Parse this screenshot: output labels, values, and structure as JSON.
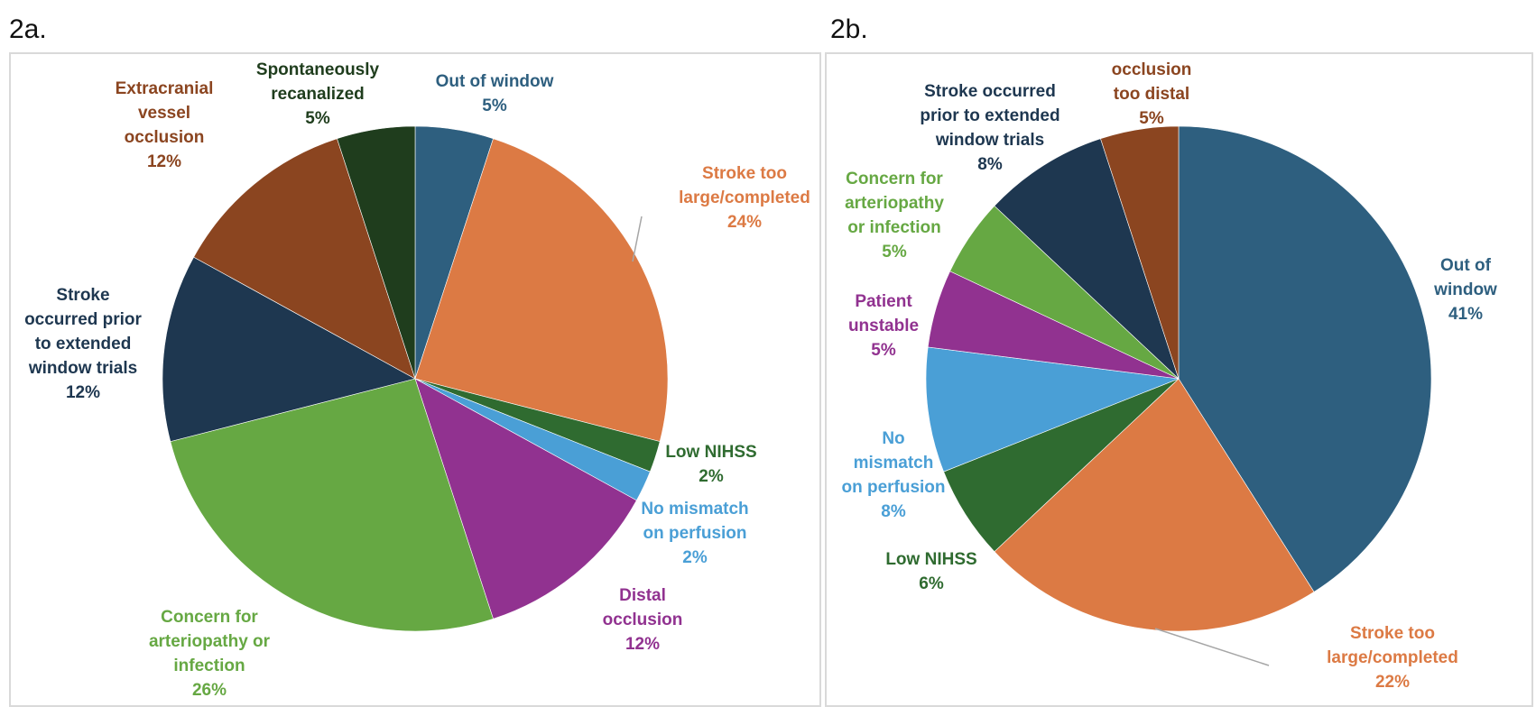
{
  "panels": {
    "a": "2a.",
    "b": "2b."
  },
  "chart_data": [
    {
      "id": "2a",
      "type": "pie",
      "title": "2a.",
      "slices": [
        {
          "name": [
            "Out of window"
          ],
          "value": 5,
          "label": "5%",
          "color": "#2e5f7f",
          "text_color": "#2e5f7f"
        },
        {
          "name": [
            "Stroke too",
            "large/completed"
          ],
          "value": 24,
          "label": "24%",
          "color": "#dc7a44",
          "text_color": "#dc7a44"
        },
        {
          "name": [
            "Low NIHSS"
          ],
          "value": 2,
          "label": "2%",
          "color": "#2f6b30",
          "text_color": "#2f6b30"
        },
        {
          "name": [
            "No mismatch",
            "on perfusion"
          ],
          "value": 2,
          "label": "2%",
          "color": "#4a9fd6",
          "text_color": "#4a9fd6"
        },
        {
          "name": [
            "Distal",
            "occlusion"
          ],
          "value": 12,
          "label": "12%",
          "color": "#913290",
          "text_color": "#913290"
        },
        {
          "name": [
            "Concern for",
            "arteriopathy or",
            "infection"
          ],
          "value": 26,
          "label": "26%",
          "color": "#66a843",
          "text_color": "#66a843"
        },
        {
          "name": [
            "Stroke",
            "occurred prior",
            "to extended",
            "window trials"
          ],
          "value": 12,
          "label": "12%",
          "color": "#1e3750",
          "text_color": "#1e3750"
        },
        {
          "name": [
            "Extracranial",
            "vessel",
            "occlusion"
          ],
          "value": 12,
          "label": "12%",
          "color": "#8b4520",
          "text_color": "#8b4520"
        },
        {
          "name": [
            "Spontaneously",
            "recanalized"
          ],
          "value": 5,
          "label": "5%",
          "color": "#1f3d1d",
          "text_color": "#1f3d1d"
        }
      ]
    },
    {
      "id": "2b",
      "type": "pie",
      "title": "2b.",
      "slices": [
        {
          "name": [
            "Out of",
            "window"
          ],
          "value": 41,
          "label": "41%",
          "color": "#2e5f7f",
          "text_color": "#2e5f7f"
        },
        {
          "name": [
            "Stroke too",
            "large/completed"
          ],
          "value": 22,
          "label": "22%",
          "color": "#dc7a44",
          "text_color": "#dc7a44"
        },
        {
          "name": [
            "Low NIHSS"
          ],
          "value": 6,
          "label": "6%",
          "color": "#2f6b30",
          "text_color": "#2f6b30"
        },
        {
          "name": [
            "No",
            "mismatch",
            "on perfusion"
          ],
          "value": 8,
          "label": "8%",
          "color": "#4a9fd6",
          "text_color": "#4a9fd6"
        },
        {
          "name": [
            "Patient",
            "unstable"
          ],
          "value": 5,
          "label": "5%",
          "color": "#913290",
          "text_color": "#913290"
        },
        {
          "name": [
            "Concern for",
            "arteriopathy",
            "or infection"
          ],
          "value": 5,
          "label": "5%",
          "color": "#66a843",
          "text_color": "#66a843"
        },
        {
          "name": [
            "Stroke occurred",
            "prior to extended",
            "window trials"
          ],
          "value": 8,
          "label": "8%",
          "color": "#1e3750",
          "text_color": "#1e3750"
        },
        {
          "name": [
            "occlusion",
            "too distal"
          ],
          "value": 5,
          "label": "5%",
          "color": "#8b4520",
          "text_color": "#8b4520"
        }
      ]
    }
  ]
}
